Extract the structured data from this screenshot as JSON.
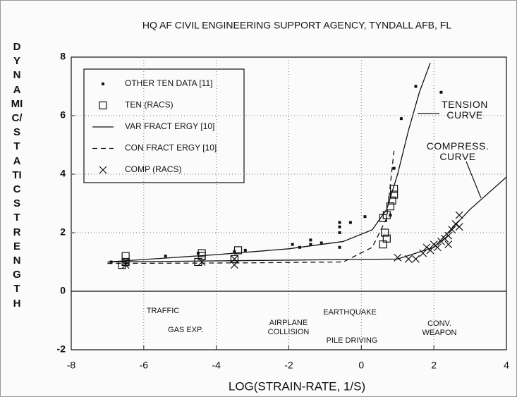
{
  "chart_data": {
    "type": "scatter",
    "title": "HQ AF CIVIL ENGINEERING SUPPORT AGENCY, TYNDALL AFB, FL",
    "x_label": "LOG(STRAIN-RATE, 1/S)",
    "y_label": "DYNAMIC/STATIC STRENGTH",
    "xlim": [
      -8,
      4
    ],
    "ylim": [
      -2,
      8
    ],
    "xticks": [
      -8,
      -6,
      -4,
      -2,
      0,
      2,
      4
    ],
    "yticks": [
      -2,
      0,
      2,
      4,
      6,
      8
    ],
    "grid": true,
    "legend": "upper left",
    "series": [
      {
        "name": "OTHER TEN DATA [11]",
        "marker": "dot",
        "color": "#111111",
        "x": [
          -6.9,
          -5.4,
          -4.5,
          -3.5,
          -3.2,
          -1.9,
          -1.7,
          -1.4,
          -1.4,
          -1.1,
          -0.6,
          -0.6,
          -0.6,
          -0.6,
          -0.3,
          0.1,
          0.8,
          0.9,
          1.1,
          1.5,
          2.2
        ],
        "values": [
          1.0,
          1.2,
          1.3,
          1.35,
          1.4,
          1.6,
          1.5,
          1.6,
          1.75,
          1.65,
          1.5,
          2.0,
          2.2,
          2.35,
          2.35,
          2.55,
          2.6,
          4.2,
          5.9,
          7.0,
          6.8
        ]
      },
      {
        "name": "TEN (RACS)",
        "marker": "square",
        "color": "#111111",
        "x": [
          -6.5,
          -6.5,
          -6.6,
          -4.5,
          -4.4,
          -4.4,
          -3.5,
          -3.4,
          0.6,
          0.7,
          0.65,
          0.6,
          0.7,
          0.8,
          0.85,
          0.9,
          0.9
        ],
        "values": [
          1.0,
          1.2,
          0.9,
          1.0,
          1.3,
          1.2,
          1.1,
          1.4,
          1.6,
          1.8,
          2.0,
          2.5,
          2.6,
          2.9,
          3.1,
          3.3,
          3.5
        ]
      },
      {
        "name": "VAR FRACT ERGY [10]",
        "marker": "line",
        "color": "#111111",
        "x": [
          -7,
          -4,
          -2,
          -0.5,
          0.3,
          0.7,
          1.0,
          1.3,
          1.6,
          1.9,
          null,
          -7,
          -3,
          1,
          2,
          3,
          4
        ],
        "values": [
          1.0,
          1.25,
          1.45,
          1.7,
          2.1,
          2.8,
          4.0,
          5.5,
          6.8,
          7.8,
          null,
          1.0,
          1.05,
          1.1,
          1.5,
          2.8,
          3.9
        ]
      },
      {
        "name": "CON FRACT ERGY [10]",
        "marker": "dash",
        "color": "#111111",
        "x": [
          -7,
          -3,
          -0.5,
          0.3,
          0.7,
          0.9
        ],
        "values": [
          0.95,
          0.97,
          1.0,
          1.5,
          2.5,
          4.8
        ]
      },
      {
        "name": "COMP (RACS)",
        "marker": "x",
        "color": "#111111",
        "x": [
          -6.5,
          -6.5,
          -4.4,
          -3.5,
          -3.5,
          1.0,
          1.3,
          1.5,
          1.7,
          1.8,
          1.9,
          2.0,
          2.1,
          2.2,
          2.3,
          2.4,
          2.5,
          2.6,
          2.7,
          2.7,
          2.4
        ],
        "values": [
          0.9,
          1.0,
          1.0,
          0.9,
          1.1,
          1.15,
          1.1,
          1.1,
          1.3,
          1.5,
          1.4,
          1.6,
          1.5,
          1.7,
          1.8,
          1.9,
          2.1,
          2.3,
          2.6,
          2.2,
          1.6
        ]
      }
    ],
    "annotations": [
      "TENSION CURVE",
      "COMPRESS. CURVE",
      "TRAFFIC",
      "GAS EXP.",
      "AIRPLANE COLLISION",
      "EARTHQUAKE",
      "PILE DRIVING",
      "CONV. WEAPON"
    ]
  }
}
